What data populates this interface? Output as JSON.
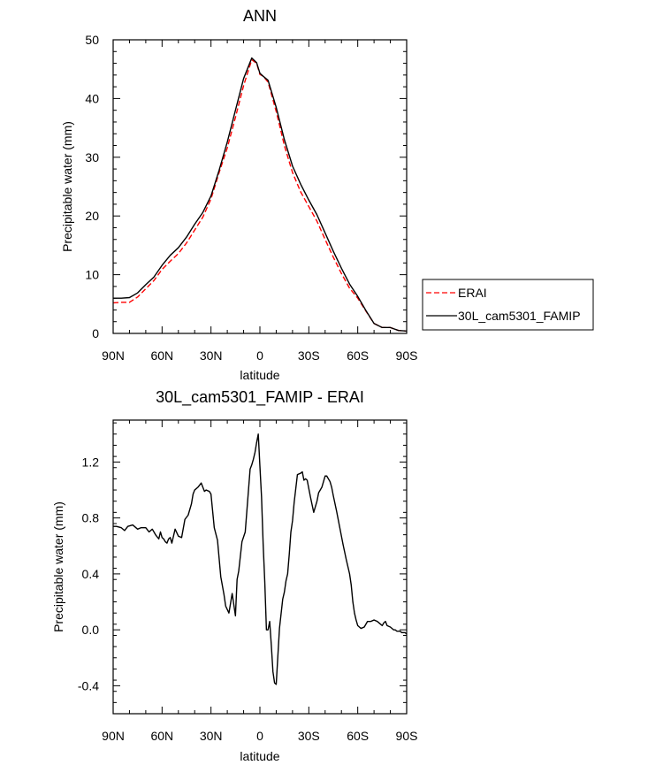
{
  "chart_data": [
    {
      "type": "line",
      "title": "ANN",
      "xlabel": "latitude",
      "ylabel": "Precipitable water (mm)",
      "xlim": [
        90,
        -90
      ],
      "ylim": [
        0,
        50
      ],
      "xticks": [
        90,
        60,
        30,
        0,
        -30,
        -60,
        -90
      ],
      "xticklabels": [
        "90N",
        "60N",
        "30N",
        "0",
        "30S",
        "60S",
        "90S"
      ],
      "yticks": [
        0,
        10,
        20,
        30,
        40,
        50
      ],
      "yticklabels": [
        "0",
        "10",
        "20",
        "30",
        "40",
        "50"
      ],
      "grid": false,
      "legend": "right",
      "series": [
        {
          "name": "ERAI",
          "color": "#ff0000",
          "dash": "dashed",
          "x": [
            90,
            85,
            80,
            75,
            70,
            65,
            60,
            55,
            50,
            45,
            40,
            35,
            30,
            25,
            20,
            15,
            10,
            5,
            2,
            0,
            -2,
            -5,
            -10,
            -15,
            -20,
            -25,
            -30,
            -35,
            -40,
            -45,
            -50,
            -55,
            -60,
            -65,
            -70,
            -75,
            -80,
            -85,
            -90
          ],
          "y": [
            5.2,
            5.3,
            5.3,
            6.2,
            7.6,
            9.0,
            10.9,
            12.3,
            13.6,
            15.4,
            17.6,
            19.8,
            22.9,
            27.4,
            31.6,
            36.8,
            42.2,
            46.6,
            46.0,
            44.1,
            43.8,
            42.8,
            37.8,
            32.0,
            27.4,
            24.1,
            21.6,
            19.1,
            16.0,
            13.0,
            10.2,
            7.7,
            6.0,
            3.8,
            1.7,
            1.0,
            1.0,
            0.5,
            0.4
          ]
        },
        {
          "name": "30L_cam5301_FAMIP",
          "color": "#000000",
          "dash": "solid",
          "x": [
            90,
            85,
            80,
            75,
            70,
            65,
            60,
            55,
            50,
            45,
            40,
            35,
            30,
            25,
            20,
            15,
            10,
            5,
            2,
            0,
            -2,
            -5,
            -10,
            -15,
            -20,
            -25,
            -30,
            -35,
            -40,
            -45,
            -50,
            -55,
            -60,
            -65,
            -70,
            -75,
            -80,
            -85,
            -90
          ],
          "y": [
            6.0,
            6.0,
            6.1,
            6.9,
            8.3,
            9.6,
            11.6,
            13.3,
            14.6,
            16.4,
            18.6,
            20.6,
            23.4,
            27.8,
            32.6,
            38.0,
            43.4,
            46.9,
            46.1,
            44.3,
            43.8,
            43.1,
            38.5,
            33.0,
            28.5,
            25.4,
            22.7,
            20.2,
            17.1,
            14.0,
            11.1,
            8.4,
            6.3,
            3.9,
            1.7,
            1.0,
            1.0,
            0.5,
            0.4
          ]
        }
      ]
    },
    {
      "type": "line",
      "title": "30L_cam5301_FAMIP - ERAI",
      "xlabel": "latitude",
      "ylabel": "Precipitable water (mm)",
      "xlim": [
        90,
        -90
      ],
      "ylim": [
        -0.6,
        1.5
      ],
      "xticks": [
        90,
        60,
        30,
        0,
        -30,
        -60,
        -90
      ],
      "xticklabels": [
        "90N",
        "60N",
        "30N",
        "0",
        "30S",
        "60S",
        "90S"
      ],
      "yticks": [
        -0.4,
        0.0,
        0.4,
        0.8,
        1.2
      ],
      "yticklabels": [
        "-0.4",
        "0.0",
        "0.4",
        "0.8",
        "1.2"
      ],
      "grid": false,
      "series": [
        {
          "color": "#000000",
          "dash": "solid",
          "x": [
            90,
            88,
            85,
            83,
            81,
            78,
            75,
            73,
            70,
            68,
            66,
            64,
            62,
            61,
            60,
            59,
            58,
            57,
            56,
            55,
            54,
            52,
            50,
            48,
            46,
            44,
            42,
            41,
            40,
            38,
            36,
            34,
            33,
            31,
            30,
            28,
            26,
            24,
            22,
            21,
            19,
            17,
            15,
            14,
            13,
            11,
            9,
            8,
            7,
            6,
            5,
            4,
            3,
            2,
            1,
            0,
            -1,
            -2,
            -3,
            -4,
            -5,
            -6,
            -7,
            -8,
            -9,
            -10,
            -12,
            -14,
            -15,
            -16,
            -17,
            -18,
            -19,
            -20,
            -21,
            -23,
            -25,
            -26,
            -27,
            -28,
            -29,
            -31,
            -33,
            -35,
            -36,
            -38,
            -40,
            -41,
            -43,
            -44,
            -45,
            -47,
            -49,
            -51,
            -53,
            -55,
            -56,
            -57,
            -58,
            -59,
            -60,
            -61,
            -62,
            -64,
            -66,
            -68,
            -70,
            -72,
            -74,
            -75,
            -76,
            -77,
            -78,
            -80,
            -82,
            -83,
            -84,
            -85,
            -86,
            -87,
            -88,
            -89,
            -90
          ],
          "y": [
            0.74,
            0.74,
            0.73,
            0.71,
            0.74,
            0.75,
            0.72,
            0.73,
            0.73,
            0.7,
            0.72,
            0.68,
            0.65,
            0.7,
            0.66,
            0.65,
            0.63,
            0.62,
            0.65,
            0.66,
            0.62,
            0.72,
            0.67,
            0.66,
            0.79,
            0.82,
            0.9,
            0.97,
            1.0,
            1.02,
            1.05,
            0.99,
            1.0,
            0.99,
            0.97,
            0.73,
            0.64,
            0.38,
            0.25,
            0.17,
            0.12,
            0.26,
            0.1,
            0.36,
            0.42,
            0.63,
            0.7,
            0.85,
            1.0,
            1.15,
            1.18,
            1.22,
            1.27,
            1.34,
            1.4,
            1.17,
            0.95,
            0.61,
            0.34,
            0.0,
            0.0,
            0.06,
            -0.11,
            -0.3,
            -0.38,
            -0.39,
            0.01,
            0.22,
            0.27,
            0.35,
            0.4,
            0.54,
            0.7,
            0.78,
            0.91,
            1.11,
            1.12,
            1.13,
            1.07,
            1.08,
            1.07,
            0.95,
            0.84,
            0.92,
            0.98,
            1.02,
            1.1,
            1.1,
            1.06,
            1.02,
            0.96,
            0.85,
            0.73,
            0.61,
            0.5,
            0.4,
            0.32,
            0.2,
            0.12,
            0.07,
            0.03,
            0.02,
            0.01,
            0.02,
            0.06,
            0.06,
            0.07,
            0.06,
            0.04,
            0.03,
            0.05,
            0.06,
            0.03,
            0.02,
            0.0,
            0.0,
            -0.01,
            -0.01,
            -0.01,
            -0.02,
            -0.02,
            -0.02,
            -0.03
          ]
        }
      ]
    }
  ]
}
